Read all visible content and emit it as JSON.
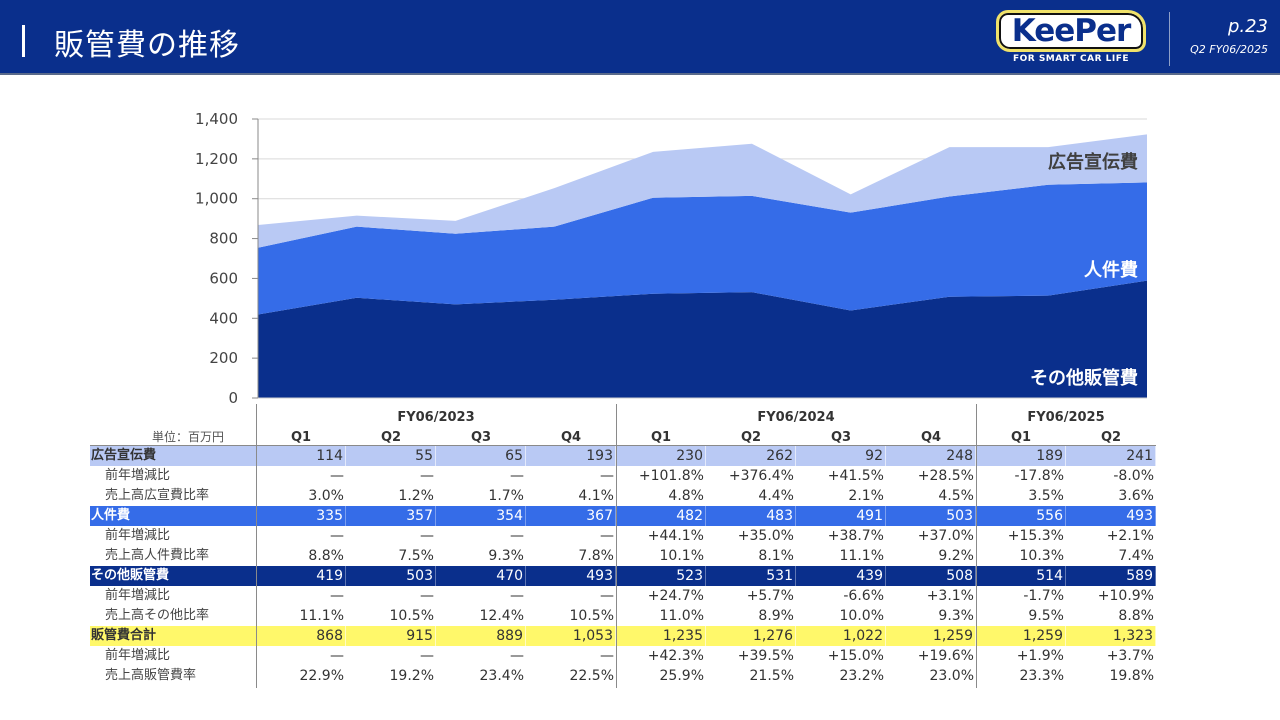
{
  "header": {
    "title": "販管費の推移",
    "logo_text": "KeePer",
    "logo_tagline": "FOR SMART CAR LIFE",
    "page": "p.23",
    "period": "Q2 FY06/2025"
  },
  "colors": {
    "header_bg": "#0a2f8c",
    "advertising": "#b9c9f4",
    "personnel": "#356ce8",
    "other_sga": "#0a2f8c",
    "total": "#fff86a"
  },
  "chart_data": {
    "type": "area",
    "stacked": true,
    "title": "",
    "xlabel": "",
    "ylabel": "",
    "ylim": [
      0,
      1400
    ],
    "yticks": [
      0,
      200,
      400,
      600,
      800,
      1000,
      1200,
      1400
    ],
    "ytick_labels": [
      "0",
      "200",
      "400",
      "600",
      "800",
      "1,000",
      "1,200",
      "1,400"
    ],
    "grid": true,
    "categories": [
      "FY06/2023 Q1",
      "FY06/2023 Q2",
      "FY06/2023 Q3",
      "FY06/2023 Q4",
      "FY06/2024 Q1",
      "FY06/2024 Q2",
      "FY06/2024 Q3",
      "FY06/2024 Q4",
      "FY06/2025 Q1",
      "FY06/2025 Q2"
    ],
    "series": [
      {
        "name": "その他販管費",
        "values": [
          419,
          503,
          470,
          493,
          523,
          531,
          439,
          508,
          514,
          589
        ],
        "color": "#0a2f8c",
        "label_color": "#ffffff"
      },
      {
        "name": "人件費",
        "values": [
          335,
          357,
          354,
          367,
          482,
          483,
          491,
          503,
          556,
          493
        ],
        "color": "#356ce8",
        "label_color": "#ffffff"
      },
      {
        "name": "広告宣伝費",
        "values": [
          114,
          55,
          65,
          193,
          230,
          262,
          92,
          248,
          189,
          241
        ],
        "color": "#b9c9f4",
        "label_color": "#404040"
      }
    ],
    "legend": "inline-right"
  },
  "table": {
    "unit_label": "単位：百万円",
    "fiscal_years": [
      {
        "label": "FY06/2023",
        "quarters": [
          "Q1",
          "Q2",
          "Q3",
          "Q4"
        ]
      },
      {
        "label": "FY06/2024",
        "quarters": [
          "Q1",
          "Q2",
          "Q3",
          "Q4"
        ]
      },
      {
        "label": "FY06/2025",
        "quarters": [
          "Q1",
          "Q2"
        ]
      }
    ],
    "rows": [
      {
        "label": "広告宣伝費",
        "kind": "main",
        "style": "ad",
        "values": [
          "114",
          "55",
          "65",
          "193",
          "230",
          "262",
          "92",
          "248",
          "189",
          "241"
        ]
      },
      {
        "label": "前年増減比",
        "kind": "sub",
        "values": [
          "—",
          "—",
          "—",
          "—",
          "+101.8%",
          "+376.4%",
          "+41.5%",
          "+28.5%",
          "-17.8%",
          "-8.0%"
        ]
      },
      {
        "label": "売上高広宣費比率",
        "kind": "sub",
        "values": [
          "3.0%",
          "1.2%",
          "1.7%",
          "4.1%",
          "4.8%",
          "4.4%",
          "2.1%",
          "4.5%",
          "3.5%",
          "3.6%"
        ]
      },
      {
        "label": "人件費",
        "kind": "main",
        "style": "personnel",
        "values": [
          "335",
          "357",
          "354",
          "367",
          "482",
          "483",
          "491",
          "503",
          "556",
          "493"
        ]
      },
      {
        "label": "前年増減比",
        "kind": "sub",
        "values": [
          "—",
          "—",
          "—",
          "—",
          "+44.1%",
          "+35.0%",
          "+38.7%",
          "+37.0%",
          "+15.3%",
          "+2.1%"
        ]
      },
      {
        "label": "売上高人件費比率",
        "kind": "sub",
        "values": [
          "8.8%",
          "7.5%",
          "9.3%",
          "7.8%",
          "10.1%",
          "8.1%",
          "11.1%",
          "9.2%",
          "10.3%",
          "7.4%"
        ]
      },
      {
        "label": "その他販管費",
        "kind": "main",
        "style": "other",
        "values": [
          "419",
          "503",
          "470",
          "493",
          "523",
          "531",
          "439",
          "508",
          "514",
          "589"
        ]
      },
      {
        "label": "前年増減比",
        "kind": "sub",
        "values": [
          "—",
          "—",
          "—",
          "—",
          "+24.7%",
          "+5.7%",
          "-6.6%",
          "+3.1%",
          "-1.7%",
          "+10.9%"
        ]
      },
      {
        "label": "売上高その他比率",
        "kind": "sub",
        "values": [
          "11.1%",
          "10.5%",
          "12.4%",
          "10.5%",
          "11.0%",
          "8.9%",
          "10.0%",
          "9.3%",
          "9.5%",
          "8.8%"
        ]
      },
      {
        "label": "販管費合計",
        "kind": "main",
        "style": "total",
        "values": [
          "868",
          "915",
          "889",
          "1,053",
          "1,235",
          "1,276",
          "1,022",
          "1,259",
          "1,259",
          "1,323"
        ]
      },
      {
        "label": "前年増減比",
        "kind": "sub",
        "values": [
          "—",
          "—",
          "—",
          "—",
          "+42.3%",
          "+39.5%",
          "+15.0%",
          "+19.6%",
          "+1.9%",
          "+3.7%"
        ]
      },
      {
        "label": "売上高販管費率",
        "kind": "sub",
        "values": [
          "22.9%",
          "19.2%",
          "23.4%",
          "22.5%",
          "25.9%",
          "21.5%",
          "23.2%",
          "23.0%",
          "23.3%",
          "19.8%"
        ]
      }
    ]
  }
}
